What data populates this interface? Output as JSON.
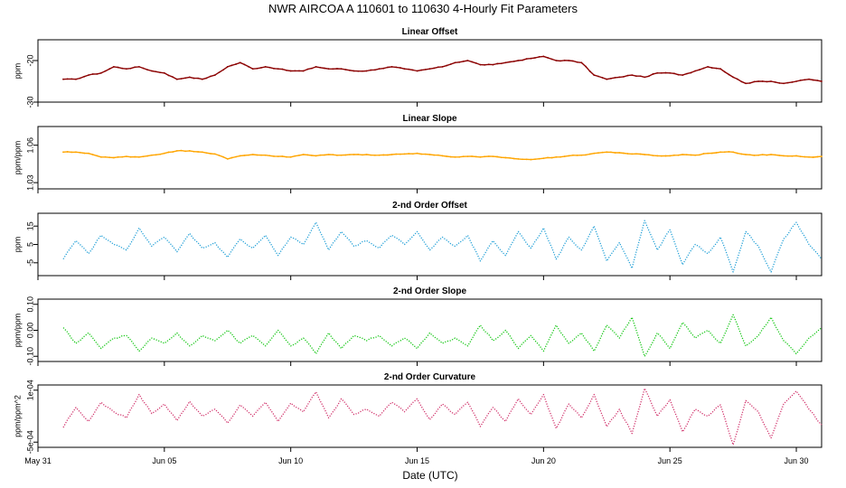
{
  "page": {
    "title": "NWR   AIRCOA A   110601 to 110630   4-Hourly Fit Parameters",
    "xlabel": "Date (UTC)"
  },
  "x_axis": {
    "range": [
      "2011-05-31",
      "2011-07-01"
    ],
    "tick_labels": [
      "May 31",
      "Jun 05",
      "Jun 10",
      "Jun 15",
      "Jun 20",
      "Jun 25",
      "Jun 30"
    ],
    "tick_days": [
      0,
      5,
      10,
      15,
      20,
      25,
      30
    ]
  },
  "chart_data": [
    {
      "type": "line",
      "title": "Linear Offset",
      "ylabel": "ppm",
      "color": "#8b0000",
      "ylim": [
        -30,
        -15
      ],
      "yticks": [
        -30,
        -20
      ],
      "ytick_labels": [
        "-30",
        "-20"
      ],
      "x": [
        1.0,
        1.5,
        2.0,
        2.5,
        3.0,
        3.5,
        4.0,
        4.5,
        5.0,
        5.5,
        6.0,
        6.5,
        7.0,
        7.5,
        8.0,
        8.5,
        9.0,
        9.5,
        10.0,
        10.5,
        11.0,
        11.5,
        12.0,
        12.5,
        13.0,
        13.5,
        14.0,
        14.5,
        15.0,
        15.5,
        16.0,
        16.5,
        17.0,
        17.5,
        18.0,
        18.5,
        19.0,
        19.5,
        20.0,
        20.5,
        21.0,
        21.5,
        22.0,
        22.5,
        23.0,
        23.5,
        24.0,
        24.5,
        25.0,
        25.5,
        26.0,
        26.5,
        27.0,
        27.5,
        28.0,
        28.5,
        29.0,
        29.5,
        30.0,
        30.5,
        31.0
      ],
      "values": [
        -24.5,
        -24.5,
        -23.5,
        -23.0,
        -21.5,
        -22.0,
        -21.5,
        -22.5,
        -23.0,
        -24.5,
        -24.0,
        -24.5,
        -23.5,
        -21.5,
        -20.5,
        -22.0,
        -21.5,
        -22.0,
        -22.5,
        -22.5,
        -21.5,
        -22.0,
        -22.0,
        -22.5,
        -22.5,
        -22.0,
        -21.5,
        -22.0,
        -22.5,
        -22.0,
        -21.5,
        -20.5,
        -20.0,
        -21.0,
        -21.0,
        -20.5,
        -20.0,
        -19.5,
        -19.0,
        -20.0,
        -20.0,
        -20.5,
        -23.5,
        -24.5,
        -24.0,
        -23.5,
        -24.0,
        -23.0,
        -23.0,
        -23.5,
        -22.5,
        -21.5,
        -22.0,
        -24.0,
        -25.5,
        -25.0,
        -25.0,
        -25.5,
        -25.0,
        -24.5,
        -25.0
      ]
    },
    {
      "type": "line",
      "title": "Linear Slope",
      "ylabel": "ppm/ppm",
      "color": "#ffa500",
      "ylim": [
        1.025,
        1.075
      ],
      "yticks": [
        1.03,
        1.06
      ],
      "ytick_labels": [
        "1.03",
        "1.06"
      ],
      "x": [
        1.0,
        1.5,
        2.0,
        2.5,
        3.0,
        3.5,
        4.0,
        4.5,
        5.0,
        5.5,
        6.0,
        6.5,
        7.0,
        7.5,
        8.0,
        8.5,
        9.0,
        9.5,
        10.0,
        10.5,
        11.0,
        11.5,
        12.0,
        12.5,
        13.0,
        13.5,
        14.0,
        14.5,
        15.0,
        15.5,
        16.0,
        16.5,
        17.0,
        17.5,
        18.0,
        18.5,
        19.0,
        19.5,
        20.0,
        20.5,
        21.0,
        21.5,
        22.0,
        22.5,
        23.0,
        23.5,
        24.0,
        24.5,
        25.0,
        25.5,
        26.0,
        26.5,
        27.0,
        27.5,
        28.0,
        28.5,
        29.0,
        29.5,
        30.0,
        30.5,
        31.0
      ],
      "values": [
        1.0545,
        1.0545,
        1.0535,
        1.0505,
        1.05,
        1.051,
        1.0505,
        1.052,
        1.0535,
        1.0555,
        1.0555,
        1.0545,
        1.053,
        1.049,
        1.0515,
        1.0525,
        1.052,
        1.051,
        1.0505,
        1.0525,
        1.0515,
        1.0525,
        1.052,
        1.0525,
        1.0525,
        1.052,
        1.0525,
        1.053,
        1.0535,
        1.0525,
        1.0515,
        1.0505,
        1.051,
        1.0505,
        1.051,
        1.05,
        1.049,
        1.0485,
        1.0495,
        1.0505,
        1.0515,
        1.052,
        1.0535,
        1.0545,
        1.054,
        1.053,
        1.0525,
        1.0515,
        1.0515,
        1.0525,
        1.052,
        1.0535,
        1.0545,
        1.0545,
        1.0525,
        1.052,
        1.0525,
        1.0515,
        1.0515,
        1.0505,
        1.051
      ]
    },
    {
      "type": "line",
      "title": "2-nd Order Offset",
      "ylabel": "ppm",
      "color": "#1e9ed6",
      "ylim": [
        -12,
        22
      ],
      "yticks": [
        -5,
        5,
        15
      ],
      "ytick_labels": [
        "-5",
        "5",
        "15"
      ],
      "x": [
        1.0,
        1.5,
        2.0,
        2.5,
        3.0,
        3.5,
        4.0,
        4.5,
        5.0,
        5.5,
        6.0,
        6.5,
        7.0,
        7.5,
        8.0,
        8.5,
        9.0,
        9.5,
        10.0,
        10.5,
        11.0,
        11.5,
        12.0,
        12.5,
        13.0,
        13.5,
        14.0,
        14.5,
        15.0,
        15.5,
        16.0,
        16.5,
        17.0,
        17.5,
        18.0,
        18.5,
        19.0,
        19.5,
        20.0,
        20.5,
        21.0,
        21.5,
        22.0,
        22.5,
        23.0,
        23.5,
        24.0,
        24.5,
        25.0,
        25.5,
        26.0,
        26.5,
        27.0,
        27.5,
        28.0,
        28.5,
        29.0,
        29.5,
        30.0,
        30.5,
        31.0
      ],
      "values": [
        -3,
        7,
        0,
        10,
        5,
        2,
        14,
        4,
        9,
        1,
        11,
        3,
        6,
        -2,
        8,
        3,
        10,
        -1,
        9,
        5,
        17,
        2,
        12,
        4,
        7,
        3,
        10,
        5,
        12,
        2,
        9,
        4,
        10,
        -4,
        7,
        -1,
        12,
        3,
        14,
        -3,
        9,
        2,
        15,
        -4,
        6,
        -8,
        18,
        2,
        13,
        -6,
        5,
        0,
        9,
        -10,
        12,
        4,
        -10,
        8,
        17,
        5,
        -3
      ]
    },
    {
      "type": "line",
      "title": "2-nd Order Slope",
      "ylabel": "ppm/ppm",
      "color": "#11c611",
      "ylim": [
        -0.12,
        0.12
      ],
      "yticks": [
        -0.1,
        0.0,
        0.1
      ],
      "ytick_labels": [
        "-0.10",
        "0.00",
        "0.10"
      ],
      "x": [
        1.0,
        1.5,
        2.0,
        2.5,
        3.0,
        3.5,
        4.0,
        4.5,
        5.0,
        5.5,
        6.0,
        6.5,
        7.0,
        7.5,
        8.0,
        8.5,
        9.0,
        9.5,
        10.0,
        10.5,
        11.0,
        11.5,
        12.0,
        12.5,
        13.0,
        13.5,
        14.0,
        14.5,
        15.0,
        15.5,
        16.0,
        16.5,
        17.0,
        17.5,
        18.0,
        18.5,
        19.0,
        19.5,
        20.0,
        20.5,
        21.0,
        21.5,
        22.0,
        22.5,
        23.0,
        23.5,
        24.0,
        24.5,
        25.0,
        25.5,
        26.0,
        26.5,
        27.0,
        27.5,
        28.0,
        28.5,
        29.0,
        29.5,
        30.0,
        30.5,
        31.0
      ],
      "values": [
        0.01,
        -0.05,
        -0.01,
        -0.07,
        -0.03,
        -0.02,
        -0.08,
        -0.03,
        -0.05,
        -0.01,
        -0.06,
        -0.02,
        -0.04,
        0.0,
        -0.05,
        -0.02,
        -0.06,
        0.0,
        -0.06,
        -0.03,
        -0.09,
        -0.01,
        -0.07,
        -0.02,
        -0.04,
        -0.02,
        -0.06,
        -0.03,
        -0.07,
        -0.01,
        -0.05,
        -0.03,
        -0.06,
        0.02,
        -0.04,
        0.0,
        -0.07,
        -0.02,
        -0.08,
        0.02,
        -0.05,
        -0.01,
        -0.08,
        0.02,
        -0.03,
        0.05,
        -0.1,
        -0.01,
        -0.07,
        0.03,
        -0.03,
        0.0,
        -0.05,
        0.06,
        -0.06,
        -0.02,
        0.05,
        -0.04,
        -0.09,
        -0.03,
        0.01
      ]
    },
    {
      "type": "line",
      "title": "2-nd Order Curvature",
      "ylabel": "ppm/ppm^2",
      "color": "#d0306a",
      "ylim": [
        -0.00056,
        0.00016
      ],
      "yticks": [
        -0.0005,
        0.0001
      ],
      "ytick_labels": [
        "-5e-04",
        "1e-04"
      ],
      "x": [
        1.0,
        1.5,
        2.0,
        2.5,
        3.0,
        3.5,
        4.0,
        4.5,
        5.0,
        5.5,
        6.0,
        6.5,
        7.0,
        7.5,
        8.0,
        8.5,
        9.0,
        9.5,
        10.0,
        10.5,
        11.0,
        11.5,
        12.0,
        12.5,
        13.0,
        13.5,
        14.0,
        14.5,
        15.0,
        15.5,
        16.0,
        16.5,
        17.0,
        17.5,
        18.0,
        18.5,
        19.0,
        19.5,
        20.0,
        20.5,
        21.0,
        21.5,
        22.0,
        22.5,
        23.0,
        23.5,
        24.0,
        24.5,
        25.0,
        25.5,
        26.0,
        26.5,
        27.0,
        27.5,
        28.0,
        28.5,
        29.0,
        29.5,
        30.0,
        30.5,
        31.0
      ],
      "values": [
        -0.00033,
        -0.0001,
        -0.00026,
        -4e-05,
        -0.00015,
        -0.00022,
        5e-05,
        -0.00017,
        -6e-05,
        -0.00025,
        -3e-05,
        -0.0002,
        -0.00012,
        -0.00028,
        -7e-05,
        -0.0002,
        -4e-05,
        -0.00026,
        -5e-05,
        -0.00015,
        8e-05,
        -0.00022,
        0.0,
        -0.00018,
        -0.00012,
        -0.0002,
        -4e-05,
        -0.00015,
        0.0,
        -0.00024,
        -6e-05,
        -0.00018,
        -4e-05,
        -0.00032,
        -0.0001,
        -0.00026,
        0.0,
        -0.00018,
        5e-05,
        -0.00034,
        -6e-05,
        -0.00022,
        5e-05,
        -0.00032,
        -0.00012,
        -0.0004,
        0.00012,
        -0.0002,
        -1e-05,
        -0.00038,
        -0.00012,
        -0.0002,
        -7e-05,
        -0.00053,
        -2e-05,
        -0.00015,
        -0.00045,
        -6e-05,
        9e-05,
        -0.00012,
        -0.0003
      ]
    }
  ]
}
